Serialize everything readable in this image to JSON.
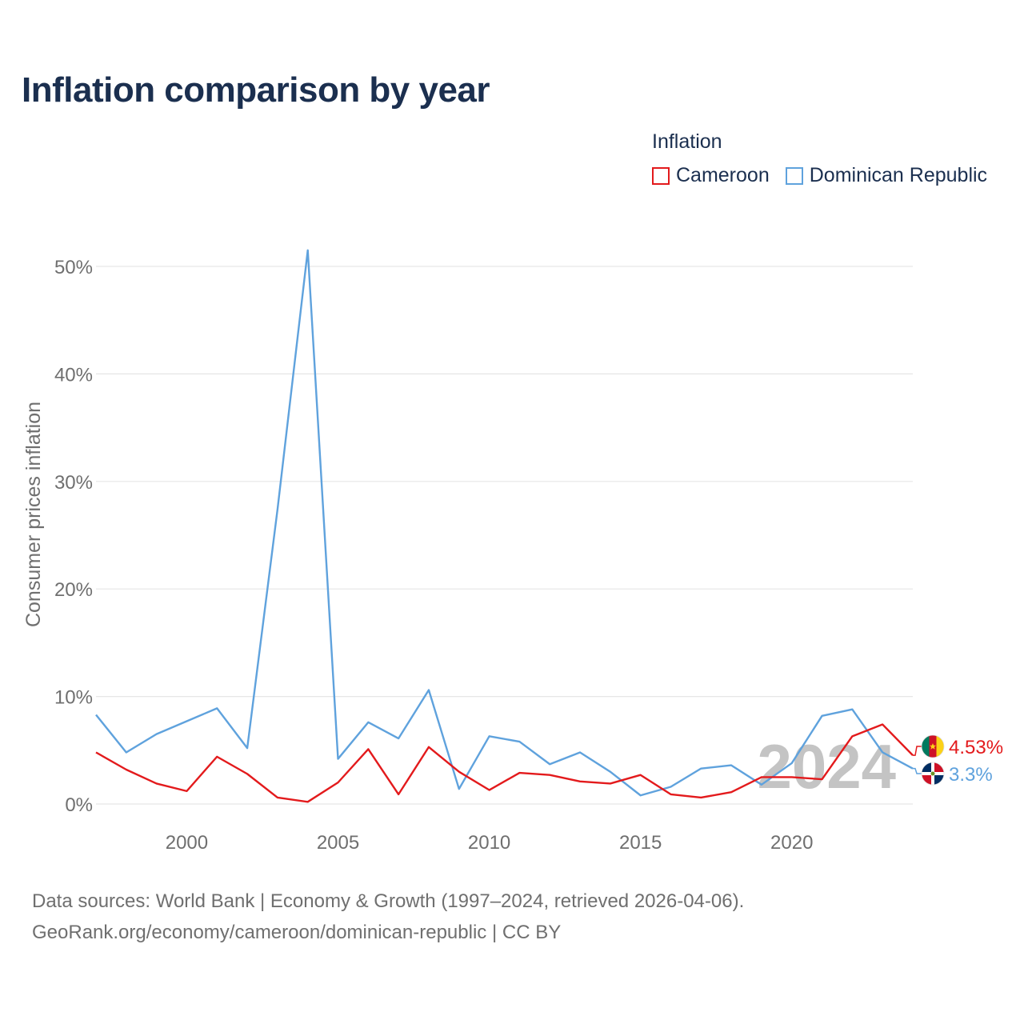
{
  "title": "Inflation comparison by year",
  "legend": {
    "title": "Inflation",
    "items": [
      {
        "name": "Cameroon",
        "color": "#e31a1c"
      },
      {
        "name": "Dominican Republic",
        "color": "#5fa2dd"
      }
    ]
  },
  "chart_data": {
    "type": "line",
    "title": "Inflation comparison by year",
    "xlabel": "",
    "ylabel": "Consumer prices inflation",
    "x": [
      1997,
      1998,
      1999,
      2000,
      2001,
      2002,
      2003,
      2004,
      2005,
      2006,
      2007,
      2008,
      2009,
      2010,
      2011,
      2012,
      2013,
      2014,
      2015,
      2016,
      2017,
      2018,
      2019,
      2020,
      2021,
      2022,
      2023,
      2024
    ],
    "xlim": [
      1997,
      2024
    ],
    "ylim": [
      0,
      50
    ],
    "x_ticks": [
      2000,
      2005,
      2010,
      2015,
      2020
    ],
    "x_tick_labels": [
      "2000",
      "2005",
      "2010",
      "2015",
      "2020"
    ],
    "y_ticks": [
      0,
      10,
      20,
      30,
      40,
      50
    ],
    "y_tick_labels": [
      "0%",
      "10%",
      "20%",
      "30%",
      "40%",
      "50%"
    ],
    "grid": true,
    "legend_position": "top-right",
    "year_watermark": "2024",
    "series": [
      {
        "name": "Cameroon",
        "color": "#e31a1c",
        "end_label": "4.53%",
        "values": [
          4.8,
          3.2,
          1.9,
          1.2,
          4.4,
          2.8,
          0.6,
          0.2,
          2.0,
          5.1,
          0.9,
          5.3,
          3.0,
          1.3,
          2.9,
          2.7,
          2.1,
          1.9,
          2.7,
          0.9,
          0.6,
          1.1,
          2.5,
          2.5,
          2.3,
          6.3,
          7.4,
          4.53
        ]
      },
      {
        "name": "Dominican Republic",
        "color": "#5fa2dd",
        "end_label": "3.3%",
        "values": [
          8.3,
          4.8,
          6.5,
          7.7,
          8.9,
          5.2,
          27.4,
          51.5,
          4.2,
          7.6,
          6.1,
          10.6,
          1.4,
          6.3,
          5.8,
          3.7,
          4.8,
          3.0,
          0.8,
          1.6,
          3.3,
          3.6,
          1.8,
          3.8,
          8.2,
          8.8,
          4.8,
          3.3
        ]
      }
    ]
  },
  "source": {
    "line1": "Data sources: World Bank | Economy & Growth (1997–2024, retrieved 2026-04-06).",
    "line2": "GeoRank.org/economy/cameroon/dominican-republic | CC BY"
  }
}
